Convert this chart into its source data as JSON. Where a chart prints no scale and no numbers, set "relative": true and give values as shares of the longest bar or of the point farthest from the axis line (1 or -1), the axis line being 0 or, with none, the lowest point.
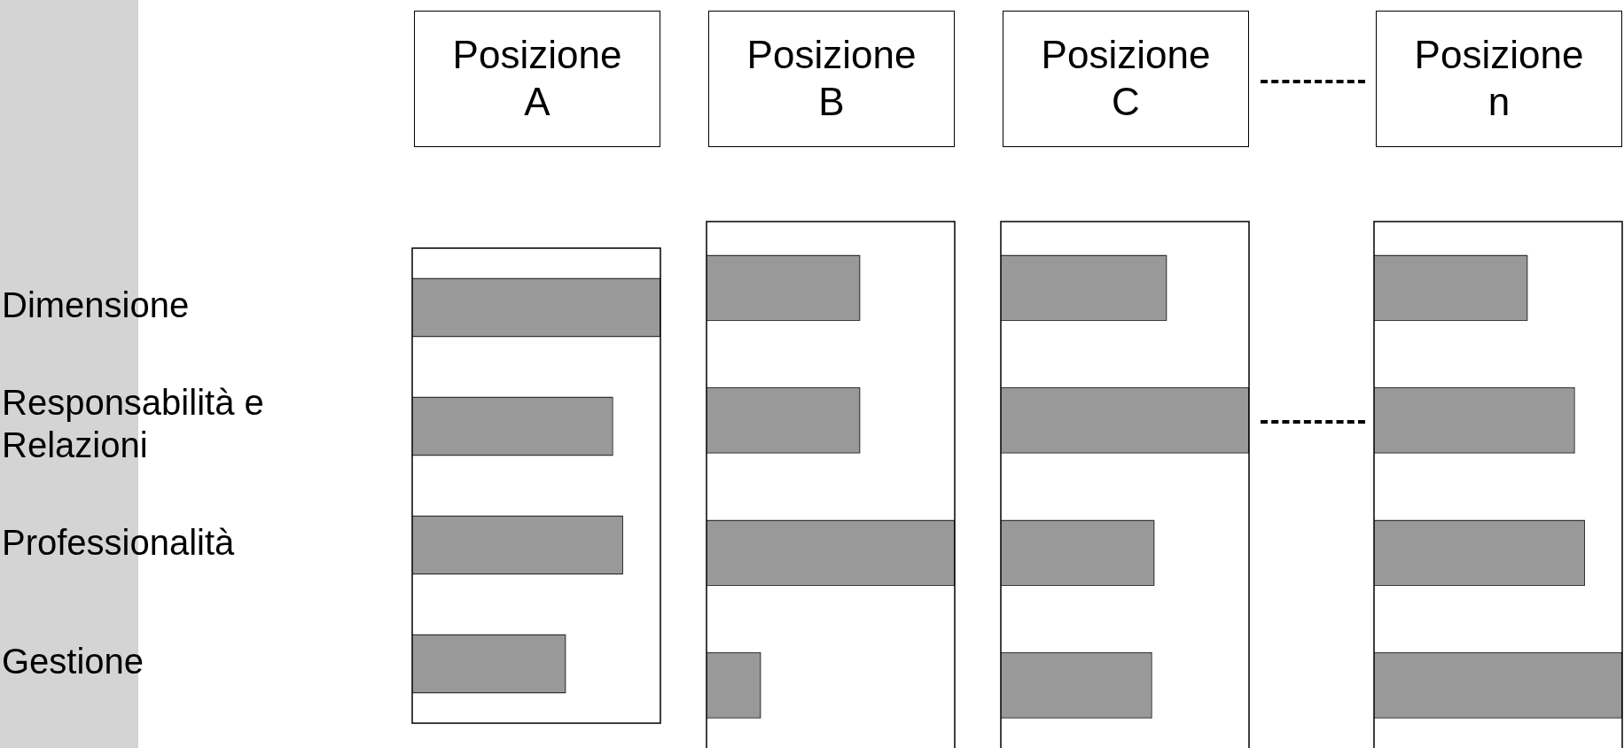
{
  "chart_data": [
    {
      "type": "bar",
      "orientation": "horizontal",
      "relative": true,
      "title": "Posizione A",
      "categories": [
        "Dimensione",
        "Responsabilità e Relazioni",
        "Professionalità",
        "Gestione"
      ],
      "values": [
        1,
        0.81,
        0.85,
        0.62
      ],
      "color": "#999999"
    },
    {
      "type": "bar",
      "orientation": "horizontal",
      "relative": true,
      "title": "Posizione B",
      "categories": [
        null,
        null,
        null,
        null
      ],
      "values": [
        0.62,
        0.62,
        1,
        0.22
      ],
      "color": "#999999"
    },
    {
      "type": "bar",
      "orientation": "horizontal",
      "relative": true,
      "title": "Posizione C",
      "categories": [
        null,
        null,
        null,
        null
      ],
      "values": [
        0.67,
        1,
        0.62,
        0.61
      ],
      "color": "#999999"
    },
    {
      "type": "bar",
      "orientation": "horizontal",
      "relative": true,
      "title": "Posizione n",
      "categories": [
        null,
        null,
        null,
        null
      ],
      "values": [
        0.62,
        0.81,
        0.85,
        1
      ],
      "color": "#999999"
    }
  ]
}
